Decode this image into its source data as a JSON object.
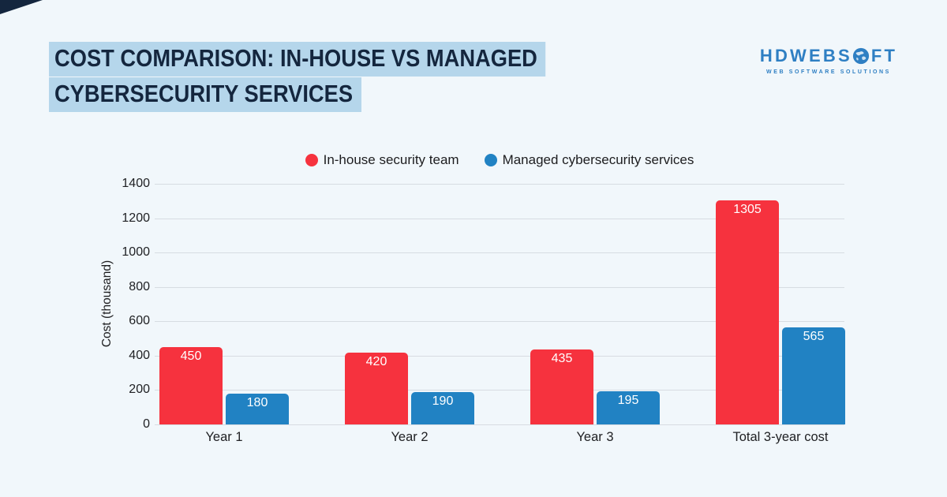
{
  "header": {
    "title_line1": "COST COMPARISON: IN-HOUSE VS MANAGED",
    "title_line2": "CYBERSECURITY SERVICES"
  },
  "logo": {
    "text_pre": "HDWEBS",
    "text_post": "FT",
    "tagline": "WEB SOFTWARE SOLUTIONS"
  },
  "colors": {
    "background": "#f1f7fb",
    "title_highlight": "#b5d6eb",
    "title_text": "#14263e",
    "logo_blue": "#2e7fc3",
    "in_house_red": "#f6323e",
    "managed_blue": "#2182c3",
    "gridline": "#d7dce2"
  },
  "chart_data": {
    "type": "bar",
    "categories": [
      "Year 1",
      "Year 2",
      "Year 3",
      "Total 3-year cost"
    ],
    "series": [
      {
        "name": "In-house security team",
        "color": "#f6323e",
        "values": [
          450,
          420,
          435,
          1305
        ]
      },
      {
        "name": "Managed cybersecurity services",
        "color": "#2182c3",
        "values": [
          180,
          190,
          195,
          565
        ]
      }
    ],
    "title": "Cost comparison: in-house vs managed cybersecurity services",
    "xlabel": "",
    "ylabel": "Cost (thousand)",
    "ylim": [
      0,
      1400
    ],
    "ytick_step": 200,
    "grid": true,
    "legend_position": "top",
    "value_labels": "inside-top"
  }
}
